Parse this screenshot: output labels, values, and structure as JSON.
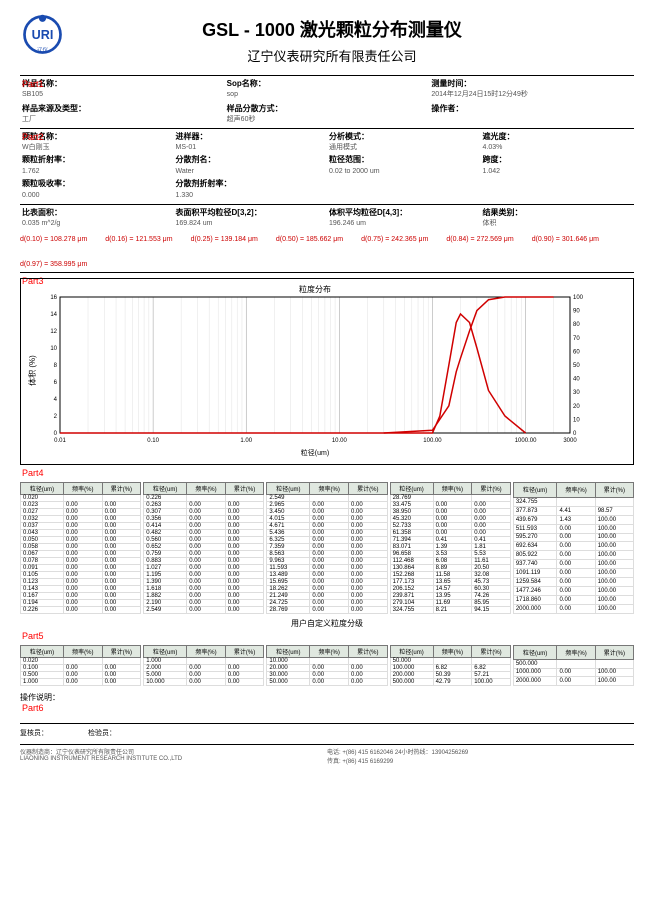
{
  "header": {
    "title": "GSL - 1000 激光颗粒分布测量仪",
    "subtitle": "辽宁仪表研究所有限责任公司"
  },
  "parts": {
    "p1": "Part1",
    "p2": "Part2",
    "p3": "Part3",
    "p4": "Part4",
    "p5": "Part5",
    "p6": "Part6"
  },
  "part1": {
    "r1c1_label": "样品名称：",
    "r1c1_val": "SB105",
    "r1c2_label": "Sop名称：",
    "r1c2_val": "sop",
    "r1c3_label": "测量时间：",
    "r1c3_val": "2014年12月24日15时12分49秒",
    "r2c1_label": "样品来源及类型：",
    "r2c1_val": "工厂",
    "r2c2_label": "样品分散方式：",
    "r2c2_val": "超声60秒",
    "r2c3_label": "操作者：",
    "r2c3_val": ""
  },
  "part2": {
    "r1": [
      {
        "label": "颗粒名称：",
        "val": "W白刚玉"
      },
      {
        "label": "进样器：",
        "val": "MS-01"
      },
      {
        "label": "分析模式：",
        "val": "通用模式"
      },
      {
        "label": "遮光度：",
        "val": "4.03%"
      }
    ],
    "r2": [
      {
        "label": "颗粒折射率：",
        "val": "1.762"
      },
      {
        "label": "分散剂名：",
        "val": "Water"
      },
      {
        "label": "粒径范围：",
        "val": "0.02 to 2000 um"
      },
      {
        "label": "跨度：",
        "val": "1.042"
      }
    ],
    "r3": [
      {
        "label": "颗粒吸收率：",
        "val": "0.000"
      },
      {
        "label": "分散剂折射率：",
        "val": "1.330"
      },
      {
        "label": "",
        "val": ""
      },
      {
        "label": "",
        "val": ""
      }
    ],
    "r4": [
      {
        "label": "比表面积：",
        "val": "0.035  m^2/g"
      },
      {
        "label": "表面积平均粒径D[3,2]：",
        "val": "169.824  um"
      },
      {
        "label": "体积平均粒径D[4,3]：",
        "val": "196.246  um"
      },
      {
        "label": "结果类别：",
        "val": "体积"
      }
    ]
  },
  "dvalues": [
    "d(0.10) = 108.278  μm",
    "d(0.16) = 121.553  μm",
    "d(0.25) = 139.184  μm",
    "d(0.50) = 185.662  μm",
    "d(0.75) = 242.365  μm",
    "d(0.84) = 272.569  μm",
    "d(0.90) = 301.646  μm",
    "d(0.97) = 358.995  μm"
  ],
  "chart": {
    "title": "粒度分布",
    "ylabel": "体积 (%)",
    "xlabel": "粒径(um)",
    "xmin": 0.01,
    "xmax": 3000,
    "y1_ticks": [
      0,
      2,
      4,
      6,
      8,
      10,
      12,
      14,
      16
    ],
    "y2_ticks": [
      0,
      10,
      20,
      30,
      40,
      50,
      60,
      70,
      80,
      90,
      100
    ],
    "x_ticks": [
      "0.01",
      "0.10",
      "1.00",
      "10.00",
      "100.00",
      "1000.00",
      "3000"
    ],
    "line_color": "#d00000",
    "grid_color": "#999",
    "background_color": "#ffffff",
    "pdf": [
      [
        30,
        0
      ],
      [
        100,
        0
      ],
      [
        120,
        2
      ],
      [
        150,
        8
      ],
      [
        180,
        13
      ],
      [
        200,
        14
      ],
      [
        250,
        13
      ],
      [
        300,
        10
      ],
      [
        400,
        5
      ],
      [
        600,
        2
      ],
      [
        1000,
        0
      ]
    ],
    "cdf": [
      [
        30,
        0
      ],
      [
        100,
        2
      ],
      [
        150,
        20
      ],
      [
        180,
        45
      ],
      [
        200,
        55
      ],
      [
        250,
        75
      ],
      [
        300,
        90
      ],
      [
        400,
        98
      ],
      [
        600,
        100
      ],
      [
        2000,
        100
      ]
    ]
  },
  "table_headers": [
    "粒径(um)",
    "频率(%)",
    "累计(%)"
  ],
  "part4_tables": [
    [
      [
        "0.020",
        "",
        ""
      ],
      [
        "0.023",
        "0.00",
        "0.00"
      ],
      [
        "0.027",
        "0.00",
        "0.00"
      ],
      [
        "0.032",
        "0.00",
        "0.00"
      ],
      [
        "0.037",
        "0.00",
        "0.00"
      ],
      [
        "0.043",
        "0.00",
        "0.00"
      ],
      [
        "0.050",
        "0.00",
        "0.00"
      ],
      [
        "0.058",
        "0.00",
        "0.00"
      ],
      [
        "0.067",
        "0.00",
        "0.00"
      ],
      [
        "0.078",
        "0.00",
        "0.00"
      ],
      [
        "0.091",
        "0.00",
        "0.00"
      ],
      [
        "0.105",
        "0.00",
        "0.00"
      ],
      [
        "0.123",
        "0.00",
        "0.00"
      ],
      [
        "0.143",
        "0.00",
        "0.00"
      ],
      [
        "0.167",
        "0.00",
        "0.00"
      ],
      [
        "0.194",
        "0.00",
        "0.00"
      ],
      [
        "0.226",
        "0.00",
        "0.00"
      ]
    ],
    [
      [
        "0.226",
        "",
        ""
      ],
      [
        "0.263",
        "0.00",
        "0.00"
      ],
      [
        "0.307",
        "0.00",
        "0.00"
      ],
      [
        "0.356",
        "0.00",
        "0.00"
      ],
      [
        "0.414",
        "0.00",
        "0.00"
      ],
      [
        "0.482",
        "0.00",
        "0.00"
      ],
      [
        "0.560",
        "0.00",
        "0.00"
      ],
      [
        "0.652",
        "0.00",
        "0.00"
      ],
      [
        "0.759",
        "0.00",
        "0.00"
      ],
      [
        "0.883",
        "0.00",
        "0.00"
      ],
      [
        "1.027",
        "0.00",
        "0.00"
      ],
      [
        "1.195",
        "0.00",
        "0.00"
      ],
      [
        "1.390",
        "0.00",
        "0.00"
      ],
      [
        "1.618",
        "0.00",
        "0.00"
      ],
      [
        "1.882",
        "0.00",
        "0.00"
      ],
      [
        "2.190",
        "0.00",
        "0.00"
      ],
      [
        "2.549",
        "0.00",
        "0.00"
      ]
    ],
    [
      [
        "2.549",
        "",
        ""
      ],
      [
        "2.965",
        "0.00",
        "0.00"
      ],
      [
        "3.450",
        "0.00",
        "0.00"
      ],
      [
        "4.015",
        "0.00",
        "0.00"
      ],
      [
        "4.671",
        "0.00",
        "0.00"
      ],
      [
        "5.436",
        "0.00",
        "0.00"
      ],
      [
        "6.325",
        "0.00",
        "0.00"
      ],
      [
        "7.359",
        "0.00",
        "0.00"
      ],
      [
        "8.563",
        "0.00",
        "0.00"
      ],
      [
        "9.963",
        "0.00",
        "0.00"
      ],
      [
        "11.593",
        "0.00",
        "0.00"
      ],
      [
        "13.489",
        "0.00",
        "0.00"
      ],
      [
        "15.695",
        "0.00",
        "0.00"
      ],
      [
        "18.262",
        "0.00",
        "0.00"
      ],
      [
        "21.249",
        "0.00",
        "0.00"
      ],
      [
        "24.725",
        "0.00",
        "0.00"
      ],
      [
        "28.769",
        "0.00",
        "0.00"
      ]
    ],
    [
      [
        "28.769",
        "",
        ""
      ],
      [
        "33.475",
        "0.00",
        "0.00"
      ],
      [
        "38.950",
        "0.00",
        "0.00"
      ],
      [
        "45.320",
        "0.00",
        "0.00"
      ],
      [
        "52.733",
        "0.00",
        "0.00"
      ],
      [
        "61.358",
        "0.00",
        "0.00"
      ],
      [
        "71.394",
        "0.41",
        "0.41"
      ],
      [
        "83.071",
        "1.39",
        "1.81"
      ],
      [
        "96.658",
        "3.53",
        "5.53"
      ],
      [
        "112.468",
        "6.08",
        "11.61"
      ],
      [
        "130.864",
        "8.89",
        "20.50"
      ],
      [
        "152.268",
        "11.58",
        "32.08"
      ],
      [
        "177.173",
        "13.65",
        "45.73"
      ],
      [
        "206.152",
        "14.57",
        "60.30"
      ],
      [
        "239.871",
        "13.95",
        "74.26"
      ],
      [
        "279.104",
        "11.69",
        "85.95"
      ],
      [
        "324.755",
        "8.21",
        "94.15"
      ]
    ],
    [
      [
        "324.755",
        "",
        ""
      ],
      [
        "377.873",
        "4.41",
        "98.57"
      ],
      [
        "439.679",
        "1.43",
        "100.00"
      ],
      [
        "511.593",
        "0.00",
        "100.00"
      ],
      [
        "595.270",
        "0.00",
        "100.00"
      ],
      [
        "692.634",
        "0.00",
        "100.00"
      ],
      [
        "805.922",
        "0.00",
        "100.00"
      ],
      [
        "937.740",
        "0.00",
        "100.00"
      ],
      [
        "1091.119",
        "0.00",
        "100.00"
      ],
      [
        "1259.584",
        "0.00",
        "100.00"
      ],
      [
        "1477.246",
        "0.00",
        "100.00"
      ],
      [
        "1718.860",
        "0.00",
        "100.00"
      ],
      [
        "2000.000",
        "0.00",
        "100.00"
      ]
    ]
  ],
  "part5_title": "用户自定义粒度分级",
  "part5_tables": [
    [
      [
        "0.020",
        "",
        ""
      ],
      [
        "0.100",
        "0.00",
        "0.00"
      ],
      [
        "0.500",
        "0.00",
        "0.00"
      ],
      [
        "1.000",
        "0.00",
        "0.00"
      ]
    ],
    [
      [
        "1.000",
        "",
        ""
      ],
      [
        "2.000",
        "0.00",
        "0.00"
      ],
      [
        "5.000",
        "0.00",
        "0.00"
      ],
      [
        "10.000",
        "0.00",
        "0.00"
      ]
    ],
    [
      [
        "10.000",
        "",
        ""
      ],
      [
        "20.000",
        "0.00",
        "0.00"
      ],
      [
        "30.000",
        "0.00",
        "0.00"
      ],
      [
        "50.000",
        "0.00",
        "0.00"
      ]
    ],
    [
      [
        "50.000",
        "",
        ""
      ],
      [
        "100.000",
        "6.82",
        "6.82"
      ],
      [
        "200.000",
        "50.39",
        "57.21"
      ],
      [
        "500.000",
        "42.79",
        "100.00"
      ]
    ],
    [
      [
        "500.000",
        "",
        ""
      ],
      [
        "1000.000",
        "0.00",
        "100.00"
      ],
      [
        "2000.000",
        "0.00",
        "100.00"
      ]
    ]
  ],
  "op_note": "操作说明：",
  "footer": {
    "f1": "复核员：",
    "f2": "检验员：",
    "mfr_label": "仪器制造商：",
    "mfr": "辽宁仪表研究所有限责任公司",
    "company": "LIAONING INSTRUMENT RESEARCH INSTITUTE CO.,LTD",
    "tel1": "电话: +(86) 415 6162046    24小时热线：13904256269",
    "tel2": "传真: +(86) 415 6169299"
  }
}
